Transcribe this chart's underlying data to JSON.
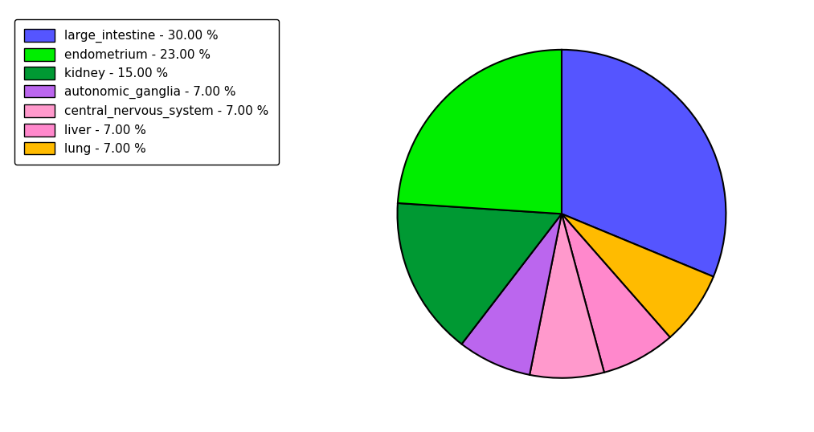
{
  "labels": [
    "large_intestine",
    "endometrium",
    "kidney",
    "autonomic_ganglia",
    "central_nervous_system",
    "liver",
    "lung"
  ],
  "values": [
    30.0,
    23.0,
    15.0,
    7.0,
    7.0,
    7.0,
    7.0
  ],
  "colors": [
    "#5555ff",
    "#00ee00",
    "#009933",
    "#bb66ee",
    "#ff99cc",
    "#ff88cc",
    "#ffbb00"
  ],
  "legend_labels": [
    "large_intestine - 30.00 %",
    "endometrium - 23.00 %",
    "kidney - 15.00 %",
    "autonomic_ganglia - 7.00 %",
    "central_nervous_system - 7.00 %",
    "liver - 7.00 %",
    "lung - 7.00 %"
  ],
  "figsize": [
    10.13,
    5.38
  ],
  "dpi": 100,
  "startangle": 90
}
